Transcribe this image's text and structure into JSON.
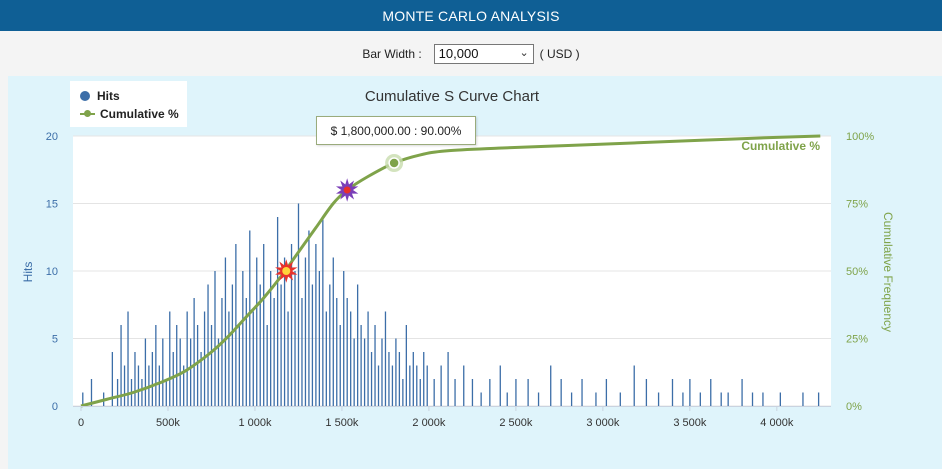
{
  "app": {
    "title": "MONTE CARLO ANALYSIS"
  },
  "toolbar": {
    "bar_width_label": "Bar Width :",
    "bar_width_value": "10,000",
    "unit": "( USD )"
  },
  "tooltip": {
    "text": "$ 1,800,000.00 : 90.00%"
  },
  "colors": {
    "hits": "#3c6ea8",
    "cumulative": "#7fa34a",
    "header": "#0f5f95",
    "panel": "#dff4fb"
  },
  "chart_data": {
    "type": "bar",
    "title": "Cumulative S Curve Chart",
    "xlabel": "",
    "ylabel": "Hits",
    "y2label": "Cumulative Frequency",
    "xlim": [
      0,
      4300000
    ],
    "ylim": [
      0,
      20
    ],
    "y2lim": [
      0,
      100
    ],
    "xticks": [
      0,
      500000,
      1000000,
      1500000,
      2000000,
      2500000,
      3000000,
      3500000,
      4000000
    ],
    "xtick_labels": [
      "0",
      "500k",
      "1 000k",
      "1 500k",
      "2 000k",
      "2 500k",
      "3 000k",
      "3 500k",
      "4 000k"
    ],
    "yticks": [
      0,
      5,
      10,
      15,
      20
    ],
    "ytick_labels": [
      "0",
      "5",
      "10",
      "15",
      "20"
    ],
    "y2ticks": [
      0,
      25,
      50,
      75,
      100
    ],
    "y2tick_labels": [
      "0%",
      "25%",
      "50%",
      "75%",
      "100%"
    ],
    "grid": true,
    "legend_position": "top-left",
    "series": [
      {
        "name": "Hits",
        "type": "bar",
        "x": [
          10000,
          60000,
          130000,
          180000,
          210000,
          230000,
          250000,
          270000,
          290000,
          310000,
          330000,
          350000,
          370000,
          390000,
          410000,
          430000,
          450000,
          470000,
          490000,
          510000,
          530000,
          550000,
          570000,
          590000,
          610000,
          630000,
          650000,
          670000,
          690000,
          710000,
          730000,
          750000,
          770000,
          790000,
          810000,
          830000,
          850000,
          870000,
          890000,
          910000,
          930000,
          950000,
          970000,
          990000,
          1010000,
          1030000,
          1050000,
          1070000,
          1090000,
          1110000,
          1130000,
          1150000,
          1170000,
          1190000,
          1210000,
          1230000,
          1250000,
          1270000,
          1290000,
          1310000,
          1330000,
          1350000,
          1370000,
          1390000,
          1410000,
          1430000,
          1450000,
          1470000,
          1490000,
          1510000,
          1530000,
          1550000,
          1570000,
          1590000,
          1610000,
          1630000,
          1650000,
          1670000,
          1690000,
          1710000,
          1730000,
          1750000,
          1770000,
          1790000,
          1810000,
          1830000,
          1850000,
          1870000,
          1890000,
          1910000,
          1930000,
          1950000,
          1970000,
          1990000,
          2030000,
          2070000,
          2110000,
          2150000,
          2200000,
          2250000,
          2300000,
          2350000,
          2410000,
          2450000,
          2500000,
          2570000,
          2630000,
          2700000,
          2760000,
          2820000,
          2880000,
          2960000,
          3020000,
          3100000,
          3180000,
          3250000,
          3320000,
          3400000,
          3460000,
          3500000,
          3560000,
          3620000,
          3680000,
          3720000,
          3800000,
          3860000,
          3920000,
          4020000,
          4150000,
          4240000
        ],
        "values": [
          1,
          2,
          1,
          4,
          2,
          6,
          3,
          7,
          2,
          4,
          3,
          2,
          5,
          3,
          4,
          6,
          3,
          5,
          2,
          7,
          4,
          6,
          5,
          3,
          7,
          5,
          8,
          6,
          4,
          7,
          9,
          6,
          10,
          5,
          8,
          11,
          7,
          9,
          12,
          6,
          10,
          8,
          13,
          7,
          11,
          9,
          12,
          6,
          10,
          8,
          14,
          9,
          11,
          7,
          12,
          10,
          15,
          8,
          11,
          13,
          9,
          12,
          10,
          14,
          7,
          9,
          11,
          8,
          6,
          10,
          8,
          7,
          5,
          9,
          6,
          5,
          7,
          4,
          6,
          3,
          5,
          7,
          4,
          3,
          5,
          4,
          2,
          6,
          3,
          4,
          3,
          2,
          4,
          3,
          2,
          3,
          4,
          2,
          3,
          2,
          1,
          2,
          3,
          1,
          2,
          2,
          1,
          3,
          2,
          1,
          2,
          1,
          2,
          1,
          3,
          2,
          1,
          2,
          1,
          2,
          1,
          2,
          1,
          1,
          2,
          1,
          1,
          1,
          1,
          1
        ],
        "color": "#3c6ea8"
      },
      {
        "name": "Cumulative %",
        "type": "line",
        "axis": "y2",
        "x": [
          0,
          150000,
          300000,
          450000,
          600000,
          750000,
          850000,
          950000,
          1050000,
          1150000,
          1250000,
          1350000,
          1450000,
          1530000,
          1650000,
          1800000,
          1950000,
          2100000,
          2400000,
          2800000,
          3200000,
          3600000,
          4000000,
          4250000
        ],
        "values": [
          0,
          2.5,
          5,
          8.5,
          13,
          20,
          26,
          33,
          40,
          48,
          57,
          66,
          75,
          80,
          85,
          90,
          93,
          94.5,
          95.5,
          96.5,
          97.5,
          98.5,
          99.5,
          100
        ],
        "color": "#7fa34a",
        "end_label": "Cumulative %"
      }
    ],
    "annotations": [
      {
        "x": 1180000,
        "y": 10,
        "marker": "red-star"
      },
      {
        "x": 1530000,
        "y": 16,
        "marker": "purple-star"
      },
      {
        "x": 1800000,
        "y2": 90,
        "marker": "highlight-point",
        "label": "$ 1,800,000.00 : 90.00%"
      }
    ]
  }
}
